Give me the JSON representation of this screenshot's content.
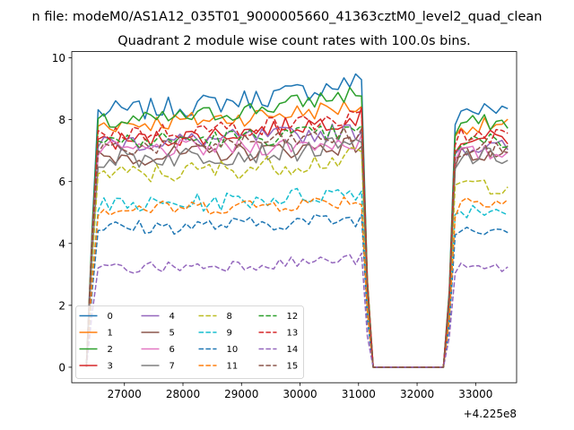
{
  "figure": {
    "suptitle": "n file: modeM0/AS1A12_035T01_9000005660_41363cztM0_level2_quad_clean",
    "offset_label": "+4.225e8"
  },
  "chart_data": {
    "type": "line",
    "title": "Quadrant 2 module wise count rates with 100.0s bins.",
    "xlabel": "",
    "ylabel": "",
    "x_offset": 422500000,
    "xlim": [
      26100,
      33700
    ],
    "ylim": [
      -0.5,
      10.2
    ],
    "xticks": [
      27000,
      28000,
      29000,
      30000,
      31000,
      32000,
      33000
    ],
    "yticks": [
      0,
      2,
      4,
      6,
      8,
      10
    ],
    "grid": false,
    "legend_location": "lower-left",
    "legend_columns": 4,
    "segments": [
      {
        "x_start": 26350,
        "x_end": 31050
      },
      {
        "x_start": 31250,
        "x_end": 32450
      },
      {
        "x_start": 32550,
        "x_end": 33550
      }
    ],
    "series": [
      {
        "name": "0",
        "color": "#1f77b4",
        "dashed": false,
        "level": 8.25,
        "noise": 0.35,
        "peak": 1.0,
        "tail": 8.3
      },
      {
        "name": "1",
        "color": "#ff7f0e",
        "dashed": false,
        "level": 7.85,
        "noise": 0.3,
        "peak": 0.6,
        "tail": 7.8
      },
      {
        "name": "2",
        "color": "#2ca02c",
        "dashed": false,
        "level": 7.9,
        "noise": 0.3,
        "peak": 1.0,
        "tail": 7.9
      },
      {
        "name": "3",
        "color": "#d62728",
        "dashed": false,
        "level": 7.3,
        "noise": 0.3,
        "peak": 0.8,
        "tail": 7.4
      },
      {
        "name": "4",
        "color": "#9467bd",
        "dashed": false,
        "level": 7.25,
        "noise": 0.3,
        "peak": 0.4,
        "tail": 7.1
      },
      {
        "name": "5",
        "color": "#8c564b",
        "dashed": false,
        "level": 6.8,
        "noise": 0.3,
        "peak": 0.4,
        "tail": 6.9
      },
      {
        "name": "6",
        "color": "#e377c2",
        "dashed": false,
        "level": 7.0,
        "noise": 0.3,
        "peak": 0.3,
        "tail": 6.9
      },
      {
        "name": "7",
        "color": "#7f7f7f",
        "dashed": false,
        "level": 6.75,
        "noise": 0.35,
        "peak": 0.4,
        "tail": 6.8
      },
      {
        "name": "8",
        "color": "#bcbd22",
        "dashed": true,
        "level": 6.2,
        "noise": 0.35,
        "peak": 0.6,
        "tail": 5.9
      },
      {
        "name": "9",
        "color": "#17becf",
        "dashed": true,
        "level": 5.2,
        "noise": 0.3,
        "peak": 0.5,
        "tail": 5.1
      },
      {
        "name": "10",
        "color": "#1f77b4",
        "dashed": true,
        "level": 4.5,
        "noise": 0.25,
        "peak": 0.3,
        "tail": 4.5
      },
      {
        "name": "11",
        "color": "#ff7f0e",
        "dashed": true,
        "level": 5.1,
        "noise": 0.25,
        "peak": 0.3,
        "tail": 5.4
      },
      {
        "name": "12",
        "color": "#2ca02c",
        "dashed": true,
        "level": 7.3,
        "noise": 0.3,
        "peak": 0.3,
        "tail": 7.3
      },
      {
        "name": "13",
        "color": "#d62728",
        "dashed": true,
        "level": 7.55,
        "noise": 0.3,
        "peak": 0.5,
        "tail": 7.5
      },
      {
        "name": "14",
        "color": "#9467bd",
        "dashed": true,
        "level": 3.2,
        "noise": 0.2,
        "peak": 0.3,
        "tail": 3.2
      },
      {
        "name": "15",
        "color": "#8c564b",
        "dashed": true,
        "level": 7.1,
        "noise": 0.3,
        "peak": 0.4,
        "tail": 7.0
      }
    ]
  }
}
